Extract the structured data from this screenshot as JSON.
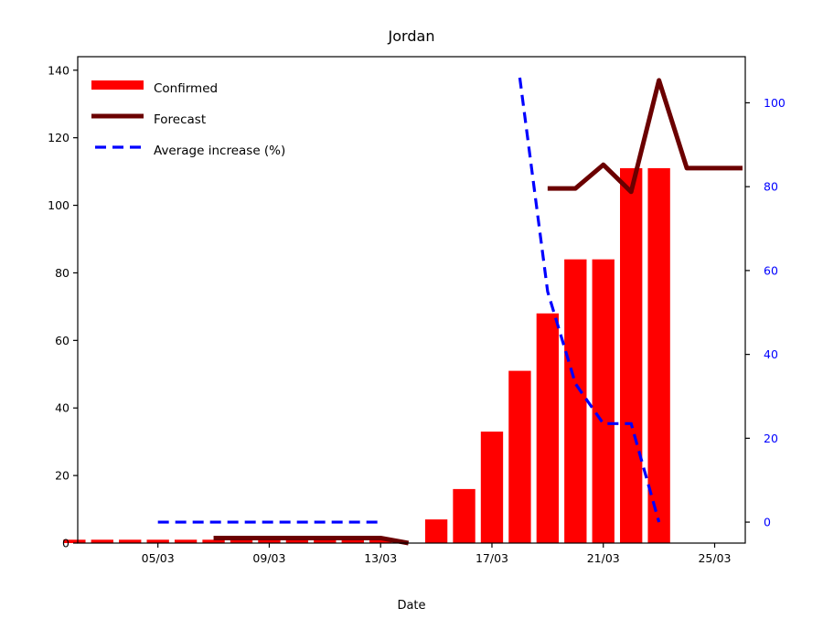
{
  "chart_data": {
    "type": "bar",
    "title": "Jordan",
    "xlabel": "Date",
    "ylabel": "",
    "ylabel_right": "",
    "x_labels": [
      "02/03",
      "03/03",
      "04/03",
      "05/03",
      "06/03",
      "07/03",
      "08/03",
      "09/03",
      "10/03",
      "11/03",
      "12/03",
      "13/03",
      "14/03",
      "15/03",
      "16/03",
      "17/03",
      "18/03",
      "19/03",
      "20/03",
      "21/03",
      "22/03",
      "23/03",
      "24/03",
      "25/03",
      "26/03"
    ],
    "x_ticks": [
      "05/03",
      "09/03",
      "13/03",
      "17/03",
      "21/03",
      "25/03"
    ],
    "ylim": [
      0,
      144
    ],
    "yticks": [
      0,
      20,
      40,
      60,
      80,
      100,
      120,
      140
    ],
    "ylim_right": [
      -5,
      111
    ],
    "yticks_right": [
      0,
      20,
      40,
      60,
      80,
      100
    ],
    "legend_position": "top-left",
    "series": [
      {
        "name": "Confirmed",
        "kind": "bar",
        "axis": "left",
        "color": "#ff0000",
        "x": [
          "02/03",
          "03/03",
          "04/03",
          "05/03",
          "06/03",
          "07/03",
          "08/03",
          "09/03",
          "10/03",
          "11/03",
          "12/03",
          "13/03",
          "14/03",
          "15/03",
          "16/03",
          "17/03",
          "18/03",
          "19/03",
          "20/03",
          "21/03",
          "22/03",
          "23/03"
        ],
        "values": [
          1,
          1,
          1,
          1,
          1,
          1,
          1,
          1,
          1,
          1,
          1,
          1,
          0,
          7,
          16,
          33,
          51,
          68,
          84,
          84,
          111,
          111
        ]
      },
      {
        "name": "Forecast",
        "kind": "line",
        "axis": "left",
        "color": "#6b0000",
        "segments": [
          {
            "x": [
              "07/03",
              "08/03",
              "09/03",
              "10/03",
              "11/03",
              "12/03",
              "13/03",
              "14/03"
            ],
            "values": [
              1.5,
              1.5,
              1.5,
              1.5,
              1.5,
              1.5,
              1.5,
              0
            ]
          },
          {
            "x": [
              "19/03",
              "20/03",
              "21/03",
              "22/03",
              "23/03",
              "24/03",
              "25/03",
              "26/03"
            ],
            "values": [
              105,
              105,
              112,
              104,
              137,
              111,
              111,
              111
            ]
          }
        ]
      },
      {
        "name": "Average increase (%)",
        "kind": "dashed-line",
        "axis": "right",
        "color": "#0000ff",
        "segments": [
          {
            "x": [
              "05/03",
              "06/03",
              "07/03",
              "08/03",
              "09/03",
              "10/03",
              "11/03",
              "12/03",
              "13/03"
            ],
            "values": [
              0,
              0,
              0,
              0,
              0,
              0,
              0,
              0,
              0
            ]
          },
          {
            "x": [
              "18/03",
              "19/03",
              "20/03",
              "21/03",
              "22/03",
              "23/03"
            ],
            "values": [
              106,
              55,
              33,
              23.5,
              23.5,
              0
            ]
          }
        ]
      }
    ]
  }
}
